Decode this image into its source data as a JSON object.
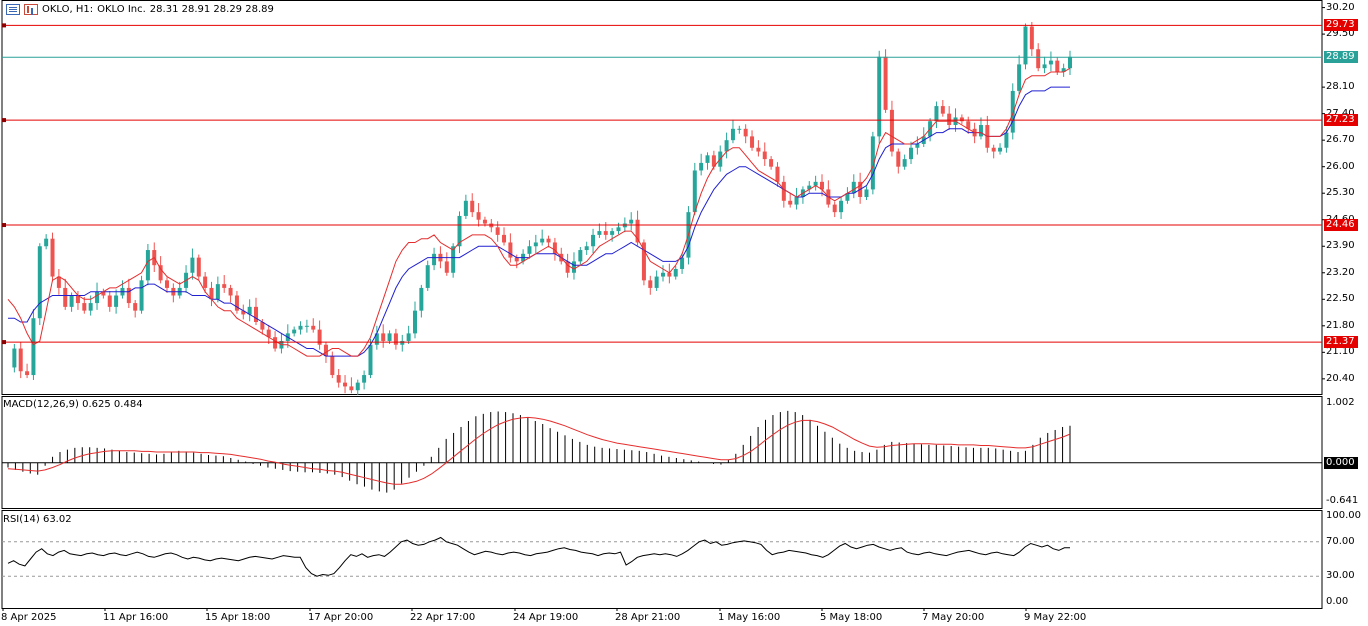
{
  "header": {
    "symbol_timeframe": "OKLO, H1:",
    "description": "OKLO Inc.",
    "ohlc": "28.31 28.91 28.29 28.89",
    "icon_left": "list-icon",
    "icon_right": "chart-type-icon"
  },
  "indicators": {
    "macd_label": "MACD(12,26,9) 0.625 0.484",
    "rsi_label": "RSI(14) 63.02"
  },
  "price_axis_labels": [
    "30.20",
    "29.50",
    "28.10",
    "27.40",
    "26.70",
    "26.00",
    "25.30",
    "24.60",
    "23.90",
    "23.20",
    "22.50",
    "21.80",
    "21.10",
    "20.40"
  ],
  "macd_axis_labels": [
    "1.002",
    "0.000",
    "-0.641"
  ],
  "rsi_axis_labels": [
    "100.00",
    "70.00",
    "30.00",
    "0.00"
  ],
  "price_tags": [
    {
      "text": "29.73",
      "value": 29.73,
      "color": "#e50000"
    },
    {
      "text": "28.89",
      "value": 28.89,
      "color": "#2aa198"
    },
    {
      "text": "27.23",
      "value": 27.23,
      "color": "#e50000"
    },
    {
      "text": "24.46",
      "value": 24.46,
      "color": "#e50000"
    },
    {
      "text": "21.37",
      "value": 21.37,
      "color": "#e50000"
    }
  ],
  "time_labels": [
    "8 Apr 2025",
    "11 Apr 16:00",
    "15 Apr 18:00",
    "17 Apr 20:00",
    "22 Apr 17:00",
    "24 Apr 19:00",
    "28 Apr 21:00",
    "1 May 16:00",
    "5 May 18:00",
    "7 May 20:00",
    "9 May 22:00"
  ],
  "colors": {
    "bull": "#26a69a",
    "bear": "#ef5350",
    "level": "#e50000",
    "bid": "#2aa198",
    "tenkan": "#e52d2d",
    "kijun": "#2020d0",
    "signal": "#e52d2d",
    "grid": "#c8c8c8"
  },
  "chart_data": {
    "type": "candlestick",
    "price_range": [
      20.0,
      30.4
    ],
    "horizontal_levels": [
      29.73,
      27.23,
      24.46,
      21.37
    ],
    "bid_line": 28.89,
    "price_path": [
      20.7,
      21.2,
      20.6,
      20.5,
      22.0,
      23.9,
      24.1,
      23.1,
      22.8,
      22.3,
      22.6,
      22.4,
      22.2,
      22.4,
      22.7,
      22.6,
      22.3,
      22.6,
      22.8,
      22.4,
      22.2,
      23.0,
      23.8,
      23.4,
      23.0,
      22.8,
      22.6,
      22.8,
      23.2,
      23.6,
      23.1,
      22.8,
      22.5,
      22.9,
      22.8,
      22.6,
      22.2,
      22.1,
      22.3,
      21.9,
      21.7,
      21.5,
      21.2,
      21.4,
      21.6,
      21.7,
      21.8,
      21.8,
      21.7,
      21.3,
      21.0,
      20.5,
      20.3,
      20.2,
      20.1,
      20.3,
      20.5,
      21.3,
      21.6,
      21.4,
      21.6,
      21.3,
      21.4,
      21.6,
      22.2,
      22.8,
      23.4,
      23.7,
      23.5,
      23.2,
      23.9,
      24.7,
      25.1,
      24.8,
      24.6,
      24.5,
      24.4,
      24.2,
      24.0,
      23.6,
      23.5,
      23.7,
      23.9,
      24.0,
      24.1,
      24.0,
      23.7,
      23.5,
      23.2,
      23.5,
      23.8,
      23.9,
      24.2,
      24.3,
      24.2,
      24.3,
      24.4,
      24.5,
      24.6,
      24.0,
      23.0,
      22.8,
      23.1,
      23.2,
      23.1,
      23.3,
      23.6,
      24.8,
      25.9,
      26.1,
      26.3,
      26.0,
      26.4,
      26.7,
      27.0,
      27.0,
      26.8,
      26.5,
      26.4,
      26.2,
      26.0,
      25.6,
      25.1,
      25.0,
      25.2,
      25.4,
      25.5,
      25.6,
      25.4,
      25.0,
      24.8,
      25.1,
      25.3,
      25.6,
      25.2,
      25.4,
      26.8,
      28.9,
      27.5,
      26.4,
      26.0,
      26.2,
      26.5,
      26.6,
      26.8,
      27.2,
      27.6,
      27.4,
      27.1,
      27.3,
      27.2,
      27.0,
      26.8,
      27.1,
      26.5,
      26.4,
      26.5,
      26.9,
      28.0,
      28.7,
      29.7,
      29.1,
      28.6,
      28.7,
      28.8,
      28.5,
      28.6,
      28.9
    ],
    "tenkan_path": [
      22.5,
      22.3,
      22.0,
      21.6,
      21.3,
      21.4,
      22.2,
      23.0,
      23.1,
      23.0,
      22.8,
      22.6,
      22.5,
      22.5,
      22.6,
      22.7,
      22.8,
      22.8,
      22.9,
      23.0,
      23.1,
      23.2,
      23.5,
      23.6,
      23.3,
      23.1,
      23.0,
      22.9,
      23.0,
      23.1,
      23.0,
      22.7,
      22.5,
      22.3,
      22.2,
      22.2,
      22.0,
      21.9,
      21.8,
      21.7,
      21.6,
      21.5,
      21.4,
      21.3,
      21.3,
      21.2,
      21.1,
      21.0,
      21.0,
      21.0,
      21.1,
      21.2,
      21.2,
      21.1,
      21.0,
      21.0,
      21.2,
      21.5,
      22.0,
      22.5,
      23.0,
      23.5,
      23.8,
      24.0,
      24.0,
      24.1,
      24.1,
      24.2,
      24.0,
      23.9,
      23.8,
      24.0,
      24.1,
      24.2,
      24.2,
      24.2,
      24.1,
      23.9,
      23.6,
      23.4,
      23.4,
      23.5,
      23.6,
      23.7,
      23.8,
      23.9,
      23.8,
      23.6,
      23.4,
      23.3,
      23.4,
      23.5,
      23.7,
      23.9,
      24.0,
      24.1,
      24.2,
      24.3,
      24.3,
      24.1,
      23.8,
      23.5,
      23.4,
      23.3,
      23.2,
      23.4,
      23.7,
      24.2,
      24.8,
      25.3,
      25.7,
      26.0,
      26.2,
      26.4,
      26.5,
      26.5,
      26.3,
      26.1,
      25.9,
      25.8,
      25.7,
      25.6,
      25.4,
      25.3,
      25.2,
      25.3,
      25.4,
      25.5,
      25.4,
      25.2,
      25.1,
      25.2,
      25.3,
      25.4,
      25.5,
      25.7,
      26.0,
      26.6,
      26.9,
      26.8,
      26.7,
      26.6,
      26.6,
      26.7,
      26.8,
      27.0,
      27.2,
      27.2,
      27.2,
      27.2,
      27.1,
      27.0,
      26.9,
      26.9,
      26.8,
      26.8,
      26.8,
      27.0,
      27.4,
      27.9,
      28.3,
      28.4,
      28.4,
      28.4,
      28.5,
      28.5,
      28.5,
      28.6
    ],
    "kijun_path": [
      22.0,
      22.0,
      21.9,
      21.9,
      22.2,
      22.4,
      22.5,
      22.6,
      22.6,
      22.6,
      22.6,
      22.6,
      22.6,
      22.7,
      22.7,
      22.7,
      22.7,
      22.7,
      22.7,
      22.7,
      22.8,
      22.8,
      22.9,
      22.9,
      22.8,
      22.7,
      22.7,
      22.7,
      22.7,
      22.6,
      22.6,
      22.6,
      22.5,
      22.5,
      22.4,
      22.4,
      22.3,
      22.2,
      22.1,
      22.0,
      21.9,
      21.8,
      21.7,
      21.6,
      21.5,
      21.4,
      21.3,
      21.2,
      21.2,
      21.1,
      21.0,
      21.0,
      21.0,
      21.0,
      21.0,
      21.0,
      21.1,
      21.3,
      21.6,
      22.0,
      22.4,
      22.8,
      23.1,
      23.3,
      23.4,
      23.5,
      23.6,
      23.6,
      23.6,
      23.6,
      23.6,
      23.6,
      23.7,
      23.8,
      23.9,
      23.9,
      23.9,
      23.9,
      23.8,
      23.7,
      23.6,
      23.6,
      23.6,
      23.7,
      23.7,
      23.7,
      23.7,
      23.6,
      23.5,
      23.4,
      23.4,
      23.4,
      23.5,
      23.6,
      23.7,
      23.7,
      23.8,
      23.9,
      24.0,
      23.9,
      23.8,
      23.7,
      23.6,
      23.5,
      23.5,
      23.5,
      23.6,
      23.9,
      24.4,
      24.8,
      25.1,
      25.4,
      25.6,
      25.8,
      25.9,
      26.0,
      26.0,
      25.9,
      25.8,
      25.7,
      25.6,
      25.5,
      25.4,
      25.3,
      25.2,
      25.2,
      25.3,
      25.3,
      25.3,
      25.2,
      25.2,
      25.2,
      25.3,
      25.3,
      25.4,
      25.5,
      25.8,
      26.2,
      26.5,
      26.6,
      26.6,
      26.6,
      26.6,
      26.6,
      26.7,
      26.8,
      26.9,
      26.9,
      27.0,
      27.0,
      27.0,
      26.9,
      26.9,
      26.9,
      26.8,
      26.8,
      26.8,
      26.9,
      27.2,
      27.6,
      27.9,
      28.0,
      28.0,
      28.0,
      28.1,
      28.1,
      28.1,
      28.1
    ],
    "macd_range": [
      -0.641,
      1.002
    ],
    "macd_histogram": [
      -0.08,
      -0.12,
      -0.15,
      -0.18,
      -0.2,
      -0.05,
      0.1,
      0.18,
      0.22,
      0.25,
      0.26,
      0.26,
      0.25,
      0.24,
      0.22,
      0.2,
      0.18,
      0.17,
      0.16,
      0.15,
      0.14,
      0.15,
      0.18,
      0.2,
      0.19,
      0.17,
      0.15,
      0.13,
      0.12,
      0.11,
      0.08,
      0.05,
      0.02,
      -0.02,
      -0.05,
      -0.08,
      -0.1,
      -0.12,
      -0.14,
      -0.15,
      -0.16,
      -0.16,
      -0.17,
      -0.18,
      -0.2,
      -0.24,
      -0.3,
      -0.36,
      -0.4,
      -0.45,
      -0.48,
      -0.5,
      -0.45,
      -0.35,
      -0.25,
      -0.15,
      -0.05,
      0.1,
      0.25,
      0.4,
      0.5,
      0.6,
      0.7,
      0.78,
      0.82,
      0.85,
      0.86,
      0.85,
      0.83,
      0.8,
      0.76,
      0.7,
      0.65,
      0.58,
      0.52,
      0.46,
      0.4,
      0.35,
      0.3,
      0.27,
      0.25,
      0.24,
      0.23,
      0.22,
      0.21,
      0.2,
      0.18,
      0.15,
      0.12,
      0.1,
      0.08,
      0.06,
      0.04,
      0.02,
      0.0,
      -0.02,
      -0.03,
      0.05,
      0.15,
      0.3,
      0.45,
      0.6,
      0.72,
      0.8,
      0.85,
      0.87,
      0.85,
      0.8,
      0.72,
      0.62,
      0.52,
      0.42,
      0.32,
      0.25,
      0.2,
      0.18,
      0.17,
      0.22,
      0.3,
      0.35,
      0.34,
      0.33,
      0.32,
      0.31,
      0.3,
      0.3,
      0.29,
      0.28,
      0.27,
      0.26,
      0.25,
      0.25,
      0.25,
      0.24,
      0.22,
      0.2,
      0.18,
      0.2,
      0.3,
      0.42,
      0.5,
      0.55,
      0.6,
      0.62
    ],
    "macd_signal": [
      -0.1,
      -0.11,
      -0.12,
      -0.13,
      -0.14,
      -0.12,
      -0.08,
      -0.03,
      0.03,
      0.08,
      0.12,
      0.15,
      0.17,
      0.19,
      0.2,
      0.2,
      0.2,
      0.2,
      0.19,
      0.19,
      0.18,
      0.18,
      0.18,
      0.18,
      0.18,
      0.18,
      0.17,
      0.17,
      0.16,
      0.15,
      0.14,
      0.12,
      0.1,
      0.08,
      0.06,
      0.03,
      0.01,
      -0.02,
      -0.04,
      -0.06,
      -0.08,
      -0.1,
      -0.11,
      -0.13,
      -0.14,
      -0.16,
      -0.19,
      -0.22,
      -0.25,
      -0.28,
      -0.31,
      -0.34,
      -0.36,
      -0.36,
      -0.34,
      -0.31,
      -0.26,
      -0.19,
      -0.1,
      0.0,
      0.1,
      0.2,
      0.3,
      0.4,
      0.49,
      0.57,
      0.64,
      0.69,
      0.73,
      0.75,
      0.76,
      0.75,
      0.73,
      0.7,
      0.66,
      0.62,
      0.57,
      0.52,
      0.47,
      0.43,
      0.39,
      0.36,
      0.33,
      0.31,
      0.29,
      0.27,
      0.25,
      0.23,
      0.21,
      0.19,
      0.17,
      0.15,
      0.13,
      0.11,
      0.09,
      0.07,
      0.05,
      0.05,
      0.07,
      0.12,
      0.19,
      0.28,
      0.38,
      0.47,
      0.56,
      0.63,
      0.68,
      0.71,
      0.71,
      0.69,
      0.65,
      0.6,
      0.53,
      0.46,
      0.39,
      0.33,
      0.28,
      0.26,
      0.27,
      0.29,
      0.3,
      0.31,
      0.32,
      0.32,
      0.32,
      0.31,
      0.31,
      0.31,
      0.3,
      0.3,
      0.3,
      0.29,
      0.29,
      0.28,
      0.27,
      0.26,
      0.25,
      0.25,
      0.27,
      0.31,
      0.35,
      0.39,
      0.43,
      0.48
    ],
    "rsi_levels": [
      70,
      30
    ],
    "rsi_values": [
      45,
      48,
      44,
      42,
      50,
      58,
      62,
      56,
      54,
      58,
      60,
      56,
      55,
      54,
      56,
      57,
      55,
      54,
      56,
      57,
      55,
      54,
      56,
      58,
      56,
      53,
      52,
      54,
      56,
      57,
      55,
      52,
      50,
      52,
      51,
      49,
      48,
      50,
      51,
      50,
      49,
      48,
      50,
      52,
      53,
      52,
      51,
      50,
      52,
      54,
      53,
      52,
      52,
      40,
      33,
      30,
      32,
      31,
      33,
      40,
      48,
      55,
      53,
      56,
      52,
      54,
      55,
      53,
      58,
      64,
      70,
      72,
      68,
      66,
      67,
      70,
      72,
      75,
      70,
      68,
      66,
      62,
      58,
      55,
      57,
      59,
      58,
      56,
      55,
      57,
      58,
      57,
      55,
      54,
      56,
      57,
      58,
      60,
      62,
      63,
      61,
      60,
      58,
      57,
      56,
      54,
      56,
      57,
      56,
      58,
      43,
      47,
      52,
      54,
      55,
      56,
      55,
      56,
      55,
      53,
      56,
      60,
      65,
      70,
      72,
      68,
      70,
      66,
      67,
      69,
      70,
      71,
      70,
      69,
      67,
      60,
      55,
      57,
      58,
      60,
      59,
      58,
      57,
      55,
      54,
      52,
      55,
      60,
      65,
      68,
      64,
      62,
      64,
      66,
      67,
      64,
      62,
      60,
      62,
      63,
      58,
      56,
      55,
      57,
      58,
      56,
      55,
      54,
      56,
      58,
      59,
      60,
      58,
      56,
      55,
      57,
      58,
      56,
      55,
      54,
      58,
      64,
      68,
      66,
      64,
      66,
      62,
      60,
      63,
      63
    ]
  }
}
